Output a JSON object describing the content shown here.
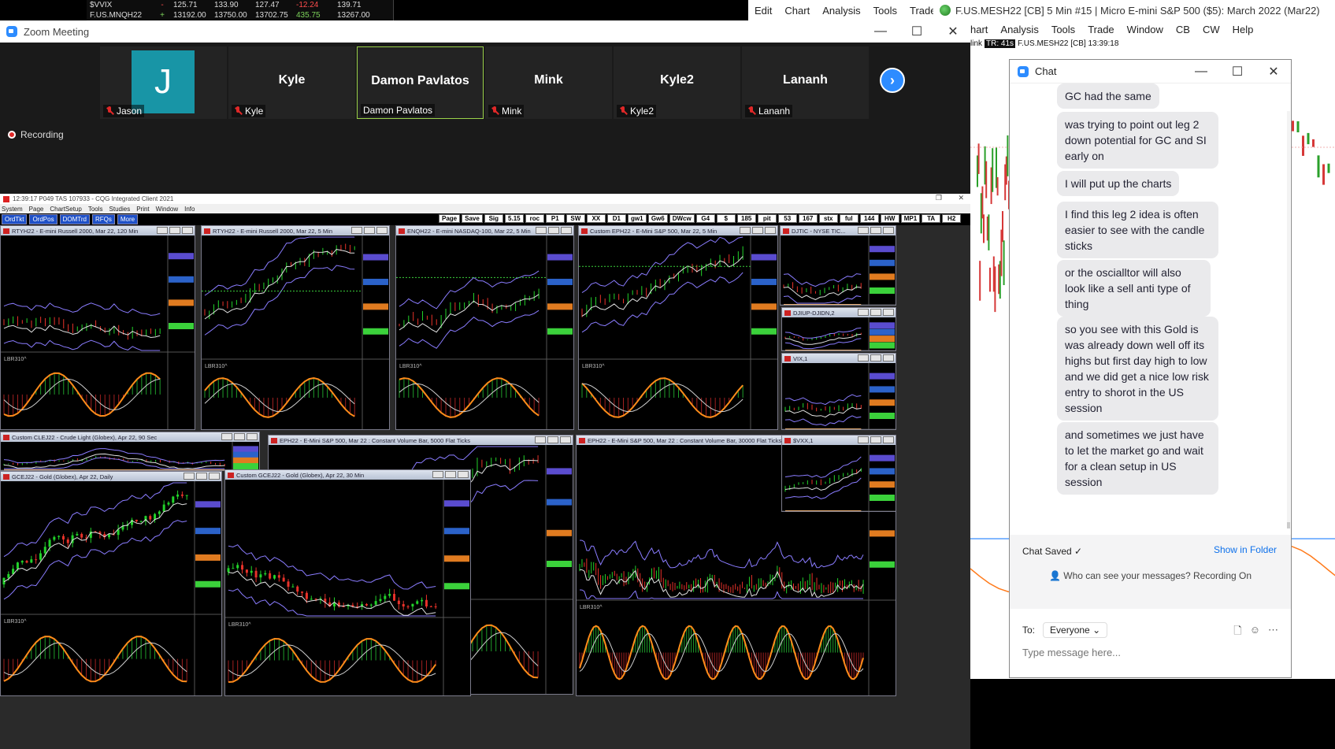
{
  "quote_strip": {
    "rows": [
      {
        "symbol": "$VVIX",
        "mark": "-",
        "v1": "125.71",
        "v2": "133.90",
        "v3": "127.47",
        "v4": "-12.24",
        "v5": "139.71",
        "v4_color": "#ff4d4d"
      },
      {
        "symbol": "F.US.MNQH22",
        "mark": "+",
        "v1": "13192.00",
        "v2": "13750.00",
        "v3": "13702.75",
        "v4": "435.75",
        "v5": "13267.00",
        "v4_color": "#7cd35a"
      }
    ]
  },
  "background_app": {
    "menu_top": [
      "Edit",
      "Chart",
      "Analysis",
      "Tools",
      "Trade"
    ],
    "title": "F.US.MESH22 [CB]  5 Min  #15 | Micro E-mini S&P 500 ($5): March 2022 (Mar22)",
    "menu_second": [
      "hart",
      "Analysis",
      "Tools",
      "Trade",
      "Window",
      "CB",
      "CW",
      "Help"
    ],
    "info_prefix": "link",
    "info_tr": "TR: 41s",
    "info_text": "F.US.MESH22 [CB] 13:39:18"
  },
  "zoom": {
    "title": "Zoom Meeting",
    "participants": [
      {
        "big": "",
        "small": "Jason",
        "avatar": "J",
        "active": false
      },
      {
        "big": "Kyle",
        "small": "Kyle",
        "avatar": "",
        "active": false
      },
      {
        "big": "Damon Pavlatos",
        "small": "Damon Pavlatos",
        "avatar": "",
        "active": true
      },
      {
        "big": "Mink",
        "small": "Mink",
        "avatar": "",
        "active": false
      },
      {
        "big": "Kyle2",
        "small": "Kyle2",
        "avatar": "",
        "active": false
      },
      {
        "big": "Lananh",
        "small": "Lananh",
        "avatar": "",
        "active": false
      }
    ],
    "next_label": "›",
    "recording_label": "Recording",
    "accent": "#2d8cff"
  },
  "cqg": {
    "title": "12:39:17   P049 TAS   107933 - CQG Integrated Client 2021",
    "menu": [
      "System",
      "Page",
      "ChartSetup",
      "Tools",
      "Studies",
      "Print",
      "Window",
      "Info"
    ],
    "left_buttons": [
      "OrdTkt",
      "OrdPos",
      "DOMTrd",
      "RFQs",
      "More"
    ],
    "right_buttons": [
      "Page",
      "Save",
      "Sig",
      "5.15",
      "roc",
      "P1",
      "SW",
      "XX",
      "D1",
      "gw1",
      "Gw6",
      "DWcw",
      "G4",
      "$",
      "185",
      "pit",
      "53",
      "167",
      "stx",
      "ful",
      "144",
      "HW",
      "MP1",
      "TA",
      "H2"
    ],
    "charts": [
      {
        "title": "RTYH22 - E-mini Russell 2000, Mar 22, 120 Min"
      },
      {
        "title": "RTYH22 - E-mini Russell 2000, Mar 22, 5 Min"
      },
      {
        "title": "ENQH22 - E-mini NASDAQ-100, Mar 22, 5 Min"
      },
      {
        "title": "Custom EPH22 - E-Mini S&P 500, Mar 22, 5 Min"
      },
      {
        "title": "DJTIC - NYSE TIC..."
      },
      {
        "title": "DJIUP-DJIDN,2"
      },
      {
        "title": "VIX,1"
      },
      {
        "title": "Custom CLEJ22 - Crude Light (Globex), Apr 22, 90 Sec"
      },
      {
        "title": "EPH22 - E-Mini S&P 500, Mar 22 : Constant Volume Bar, 5000 Flat Ticks"
      },
      {
        "title": "EPH22 - E-Mini S&P 500, Mar 22 : Constant Volume Bar, 30000 Flat Ticks"
      },
      {
        "title": "$VXX,1"
      },
      {
        "title": "GCEJ22 - Gold (Globex), Apr 22, Daily"
      },
      {
        "title": "Custom GCEJ22 - Gold (Globex), Apr 22, 30 Min"
      }
    ],
    "osc_label": "LBR310^"
  },
  "chat": {
    "title": "Chat",
    "messages": [
      "GC had the same",
      "was trying to point out leg 2 down potential for GC and SI early on",
      "I will put up the charts",
      "I find this leg 2 idea is often easier to see with the candle sticks",
      "or the oscialltor  will also look  like a sell anti  type of thing",
      "so you see with this Gold  is was already down well off its highs  but first day  high to low  and we did get a nice low risk entry to shorot in the US  session",
      "and sometimes we just have to let the market  go and wait for a clean  setup in US session"
    ],
    "saved_label": "Chat Saved ✓",
    "show_folder": "Show in Folder",
    "who_can_see": "Who can see your messages? Recording On",
    "to_label": "To:",
    "to_value": "Everyone",
    "placeholder": "Type message here..."
  }
}
